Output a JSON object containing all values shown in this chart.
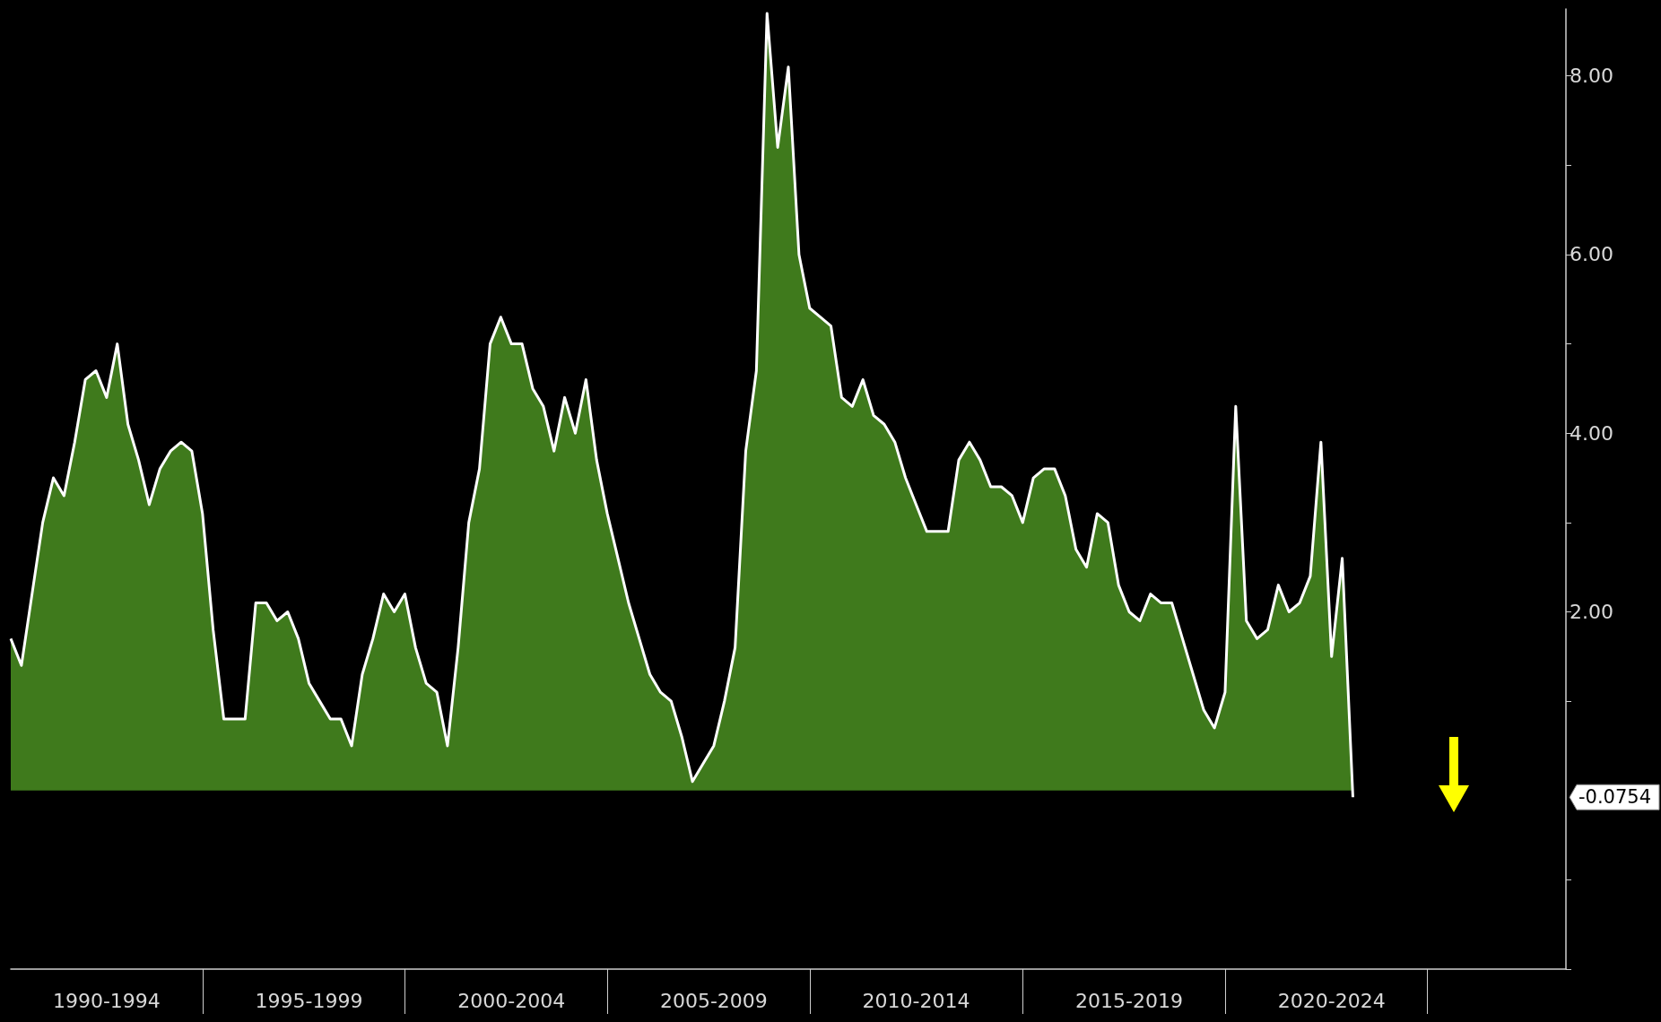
{
  "chart_data": {
    "type": "area",
    "categories": [
      null,
      null,
      null,
      null,
      null,
      null,
      null,
      null,
      null,
      "1990-1994",
      null,
      null,
      null,
      null,
      null,
      null,
      null,
      null,
      null,
      null,
      null,
      null,
      null,
      null,
      null,
      null,
      null,
      null,
      "1995-1999",
      null,
      null,
      null,
      null,
      null,
      null,
      null,
      null,
      null,
      null,
      null,
      null,
      null,
      null,
      null,
      null,
      null,
      null,
      "2000-2004",
      null,
      null,
      null,
      null,
      null,
      null,
      null,
      null,
      null,
      null,
      null,
      null,
      null,
      null,
      null,
      null,
      null,
      null,
      "2005-2009",
      null,
      null,
      null,
      null,
      null,
      null,
      null,
      null,
      null,
      null,
      null,
      null,
      null,
      null,
      null,
      null,
      null,
      null,
      "2010-2014",
      null,
      null,
      null,
      null,
      null,
      null,
      null,
      null,
      null,
      null,
      null,
      null,
      null,
      null,
      null,
      null,
      null,
      null,
      null,
      "2015-2019",
      null,
      null,
      null,
      null,
      null,
      null,
      null,
      null,
      null,
      null,
      null,
      null,
      null,
      null,
      null,
      null,
      null,
      null,
      "2020-2024",
      null,
      null,
      null,
      null,
      null,
      null,
      null,
      null,
      null,
      null,
      null,
      null,
      null,
      null,
      null,
      null,
      null,
      null,
      null,
      null,
      null,
      null
    ],
    "series": [
      {
        "color": "#3f7a1c",
        "values": [
          1.7,
          1.4,
          2.2,
          3.0,
          3.5,
          3.3,
          3.9,
          4.6,
          4.7,
          4.4,
          5.0,
          4.1,
          3.7,
          3.2,
          3.6,
          3.8,
          3.9,
          3.8,
          3.1,
          1.8,
          0.8,
          0.8,
          0.8,
          2.1,
          2.1,
          1.9,
          2.0,
          1.7,
          1.2,
          1.0,
          0.8,
          0.8,
          0.5,
          1.3,
          1.7,
          2.2,
          2.0,
          2.2,
          1.6,
          1.2,
          1.1,
          0.5,
          1.6,
          3.0,
          3.6,
          5.0,
          5.3,
          5.0,
          5.0,
          4.5,
          4.3,
          3.8,
          4.4,
          4.0,
          4.6,
          3.7,
          3.1,
          2.6,
          2.1,
          1.7,
          1.3,
          1.1,
          1.0,
          0.6,
          0.1,
          0.3,
          0.5,
          1.0,
          1.6,
          3.8,
          4.7,
          8.7,
          7.2,
          8.1,
          6.0,
          5.4,
          5.3,
          5.2,
          4.4,
          4.3,
          4.6,
          4.2,
          4.1,
          3.9,
          3.5,
          3.2,
          2.9,
          2.9,
          2.9,
          3.7,
          3.9,
          3.7,
          3.4,
          3.4,
          3.3,
          3.0,
          3.5,
          3.6,
          3.6,
          3.3,
          2.7,
          2.5,
          3.1,
          3.0,
          2.3,
          2.0,
          1.9,
          2.2,
          2.1,
          2.1,
          1.7,
          1.3,
          0.9,
          0.7,
          1.1,
          4.3,
          1.9,
          1.7,
          1.8,
          2.3,
          2.0,
          2.1,
          2.4,
          3.9,
          1.5,
          2.6,
          -0.0754,
          null,
          null,
          null,
          null,
          null,
          null,
          null,
          null,
          null,
          null,
          null,
          null,
          null,
          null,
          null,
          null,
          null,
          null,
          null,
          null
        ]
      }
    ],
    "ylim": [
      -2,
      8.75
    ],
    "yticks": [
      {
        "value": -2,
        "label": null
      },
      {
        "value": -1,
        "label": null
      },
      {
        "value": 1,
        "label": null
      },
      {
        "value": 2,
        "label": "2.00"
      },
      {
        "value": 3,
        "label": null
      },
      {
        "value": 4,
        "label": "4.00"
      },
      {
        "value": 5,
        "label": null
      },
      {
        "value": 6,
        "label": "6.00"
      },
      {
        "value": 7,
        "label": null
      },
      {
        "value": 8,
        "label": "8.00"
      }
    ],
    "annotations": [
      "-0.0754"
    ]
  }
}
